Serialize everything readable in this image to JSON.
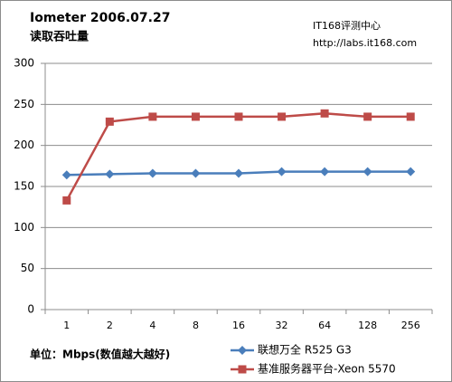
{
  "chart_data": {
    "type": "line",
    "title": "Iometer  2006.07.27",
    "subtitle": "读取吞吐量",
    "annotations": [
      "IT168评测中心",
      "http://labs.it168.com"
    ],
    "ylabel": "单位：Mbps(数值越大越好)",
    "categories": [
      "1",
      "2",
      "4",
      "8",
      "16",
      "32",
      "64",
      "128",
      "256"
    ],
    "series": [
      {
        "name": "联想万全 R525 G3",
        "color": "#4a7ebb",
        "marker": "diamond",
        "values": [
          164,
          165,
          166,
          166,
          166,
          168,
          168,
          168,
          168
        ]
      },
      {
        "name": "基准服务器平台-Xeon 5570",
        "color": "#be4b48",
        "marker": "square",
        "values": [
          133,
          229,
          235,
          235,
          235,
          235,
          239,
          235,
          235
        ]
      }
    ],
    "ylim": [
      0,
      300
    ],
    "yticks": [
      0,
      50,
      100,
      150,
      200,
      250,
      300
    ],
    "grid": true
  }
}
